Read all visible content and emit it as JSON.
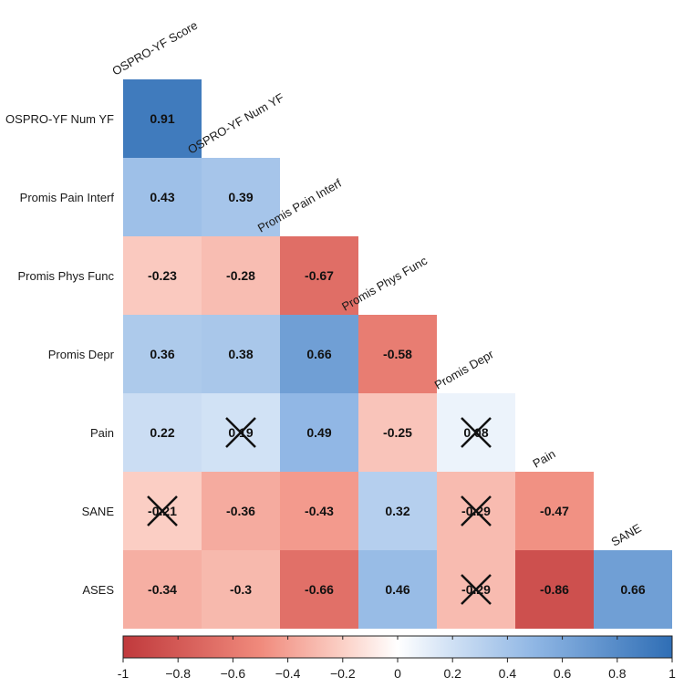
{
  "chart_data": {
    "type": "heatmap",
    "title": "",
    "variables": [
      "OSPRO-YF Score",
      "OSPRO-YF Num YF",
      "Promis Pain Interf",
      "Promis Phys Func",
      "Promis Depr",
      "Pain",
      "SANE",
      "ASES"
    ],
    "row_labels": [
      "OSPRO-YF Num YF",
      "Promis Pain Interf",
      "Promis Phys Func",
      "Promis Depr",
      "Pain",
      "SANE",
      "ASES"
    ],
    "col_labels": [
      "OSPRO-YF Score",
      "OSPRO-YF Num YF",
      "Promis Pain Interf",
      "Promis Phys Func",
      "Promis Depr",
      "Pain",
      "SANE"
    ],
    "cells": [
      [
        "0.91"
      ],
      [
        "0.43",
        "0.39"
      ],
      [
        "-0.23",
        "-0.28",
        "-0.67"
      ],
      [
        "0.36",
        "0.38",
        "0.66",
        "-0.58"
      ],
      [
        "0.22",
        "0.19",
        "0.49",
        "-0.25",
        "0.08"
      ],
      [
        "-0.21",
        "-0.36",
        "-0.43",
        "0.32",
        "-0.29",
        "-0.47"
      ],
      [
        "-0.34",
        "-0.3",
        "-0.66",
        "0.46",
        "-0.29",
        "-0.86",
        "0.66"
      ]
    ],
    "non_significant": [
      [
        4,
        1
      ],
      [
        4,
        4
      ],
      [
        5,
        0
      ],
      [
        5,
        4
      ],
      [
        6,
        4
      ]
    ],
    "color_scale": {
      "min": -1,
      "max": 1,
      "negative_color": "#b2182b",
      "mid_color": "#ffffff",
      "positive_color": "#2166ac",
      "ticks": [
        "-1",
        "−0.8",
        "−0.6",
        "−0.4",
        "−0.2",
        "0",
        "0.2",
        "0.4",
        "0.6",
        "0.8",
        "1"
      ]
    },
    "legend_position": "bottom"
  }
}
